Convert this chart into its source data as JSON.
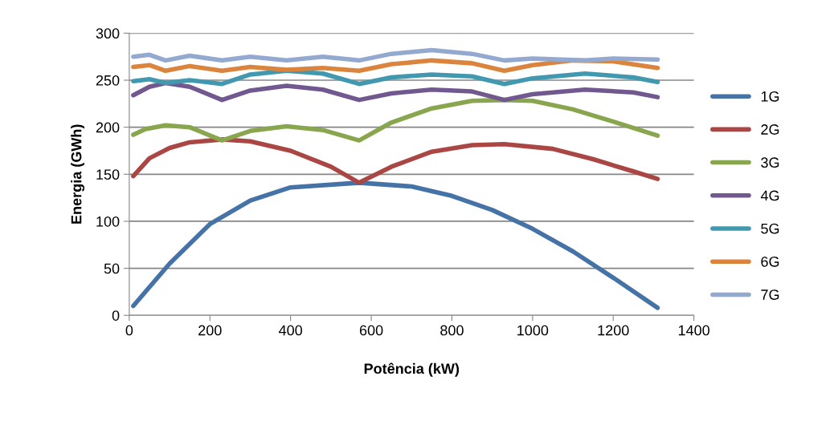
{
  "chart_data": {
    "type": "line",
    "xlabel": "Potência (kW)",
    "ylabel": "Energia (GWh)",
    "xlim": [
      0,
      1400
    ],
    "xticks": [
      0,
      200,
      400,
      600,
      800,
      1000,
      1200,
      1400
    ],
    "ylim": [
      0,
      300
    ],
    "yticks": [
      0,
      50,
      100,
      150,
      200,
      250,
      300
    ],
    "grid": "y",
    "legend": "right",
    "marker": "none",
    "line_style": "solid",
    "series": [
      {
        "name": "1G",
        "color": "#4572a7",
        "x": [
          10,
          100,
          200,
          300,
          400,
          570,
          700,
          800,
          900,
          1000,
          1100,
          1200,
          1310
        ],
        "values": [
          10,
          55,
          97,
          122,
          136,
          141,
          137,
          127,
          112,
          92,
          68,
          40,
          8
        ]
      },
      {
        "name": "2G",
        "color": "#aa4643",
        "x": [
          10,
          50,
          100,
          150,
          230,
          300,
          400,
          500,
          570,
          650,
          750,
          850,
          930,
          1050,
          1150,
          1250,
          1310
        ],
        "values": [
          148,
          167,
          178,
          184,
          187,
          185,
          175,
          158,
          141,
          158,
          174,
          181,
          182,
          177,
          166,
          153,
          145
        ]
      },
      {
        "name": "3G",
        "color": "#89a54e",
        "x": [
          10,
          40,
          90,
          150,
          230,
          300,
          390,
          480,
          570,
          650,
          750,
          850,
          930,
          1000,
          1100,
          1200,
          1310
        ],
        "values": [
          192,
          198,
          202,
          200,
          186,
          196,
          201,
          197,
          186,
          205,
          220,
          228,
          229,
          228,
          219,
          206,
          191
        ]
      },
      {
        "name": "4G",
        "color": "#71588f",
        "x": [
          10,
          50,
          90,
          150,
          230,
          300,
          390,
          480,
          570,
          650,
          750,
          850,
          930,
          1000,
          1130,
          1250,
          1310
        ],
        "values": [
          234,
          243,
          247,
          243,
          229,
          239,
          244,
          240,
          229,
          236,
          240,
          238,
          229,
          235,
          240,
          237,
          232
        ]
      },
      {
        "name": "5G",
        "color": "#4198af",
        "x": [
          10,
          50,
          90,
          150,
          230,
          300,
          390,
          480,
          570,
          650,
          750,
          850,
          930,
          1000,
          1130,
          1250,
          1310
        ],
        "values": [
          249,
          251,
          247,
          250,
          246,
          256,
          260,
          257,
          246,
          253,
          256,
          254,
          246,
          252,
          257,
          253,
          248
        ]
      },
      {
        "name": "6G",
        "color": "#db843d",
        "x": [
          10,
          50,
          90,
          150,
          230,
          300,
          390,
          480,
          570,
          650,
          750,
          850,
          930,
          1000,
          1100,
          1200,
          1310
        ],
        "values": [
          264,
          266,
          260,
          265,
          260,
          264,
          261,
          263,
          260,
          267,
          271,
          268,
          260,
          266,
          271,
          270,
          263
        ]
      },
      {
        "name": "7G",
        "color": "#93a9cf",
        "x": [
          10,
          50,
          90,
          150,
          230,
          300,
          390,
          480,
          570,
          650,
          750,
          850,
          930,
          1000,
          1130,
          1200,
          1310
        ],
        "values": [
          275,
          277,
          271,
          276,
          271,
          275,
          271,
          275,
          271,
          278,
          282,
          278,
          271,
          273,
          271,
          273,
          272
        ]
      }
    ]
  }
}
